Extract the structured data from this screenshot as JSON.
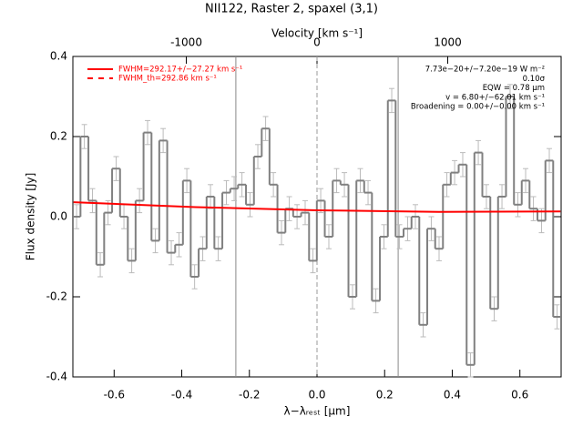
{
  "chart_data": {
    "type": "step",
    "title": "NII122, Raster 2, spaxel (3,1)",
    "x_label": "λ−λᵣₑₛₜ [μm]",
    "y_label": "Flux density [Jy]",
    "x2_label": "Velocity [km s⁻¹]",
    "xlim": [
      -0.722,
      0.722
    ],
    "xticks": [
      -0.6,
      -0.4,
      -0.2,
      {
        "value": 0,
        "label": "0.0"
      },
      0.2,
      0.4,
      0.6
    ],
    "ylim": [
      -0.4,
      0.4
    ],
    "yticks": [
      -0.4,
      -0.2,
      {
        "value": 0,
        "label": "0.0"
      },
      0.2,
      0.4
    ],
    "x2lim": [
      -1868,
      1868
    ],
    "x2ticks": [
      -1000,
      0,
      1000
    ],
    "vlines": [
      -0.24,
      0.24
    ],
    "center_line": 0,
    "annotations": [
      "7.73e−20+/−7.20e−19 W m⁻²",
      "0.10σ",
      "EQW = 0.78 μm",
      "v = 6.80+/−62.01 km s⁻¹",
      "Broadening = 0.00+/−0.00 km s⁻¹"
    ],
    "series": [
      {
        "name": "FWHM=292.17+/−27.27 km s⁻¹",
        "color": "#ff0000",
        "x": [
          -0.72,
          -0.36,
          0,
          0.36,
          0.72
        ],
        "values": [
          0.036,
          0.024,
          0.016,
          0.012,
          0.013
        ]
      },
      {
        "name": "FWHM_th=292.86 km s⁻¹",
        "color": "#ff0000",
        "dashed": true
      },
      {
        "color": "#808080",
        "error": 0.03,
        "x": [
          -0.711,
          -0.688,
          -0.664,
          -0.641,
          -0.618,
          -0.594,
          -0.571,
          -0.548,
          -0.525,
          -0.501,
          -0.478,
          -0.455,
          -0.431,
          -0.408,
          -0.385,
          -0.362,
          -0.338,
          -0.315,
          -0.292,
          -0.268,
          -0.245,
          -0.222,
          -0.198,
          -0.175,
          -0.152,
          -0.129,
          -0.105,
          -0.082,
          -0.059,
          -0.035,
          -0.012,
          0.011,
          0.035,
          0.058,
          0.081,
          0.105,
          0.128,
          0.151,
          0.174,
          0.198,
          0.221,
          0.244,
          0.268,
          0.291,
          0.314,
          0.338,
          0.361,
          0.384,
          0.407,
          0.431,
          0.454,
          0.477,
          0.501,
          0.524,
          0.547,
          0.571,
          0.594,
          0.617,
          0.64,
          0.664,
          0.687,
          0.71
        ],
        "values": [
          0.0,
          0.2,
          0.04,
          -0.12,
          0.01,
          0.12,
          0.0,
          -0.11,
          0.04,
          0.21,
          -0.06,
          0.19,
          -0.09,
          -0.07,
          0.09,
          -0.15,
          -0.08,
          0.05,
          -0.08,
          0.06,
          0.07,
          0.08,
          0.03,
          0.15,
          0.22,
          0.08,
          -0.04,
          0.02,
          0.0,
          0.01,
          -0.11,
          0.04,
          -0.05,
          0.09,
          0.08,
          -0.2,
          0.09,
          0.06,
          -0.21,
          -0.05,
          0.29,
          -0.05,
          -0.03,
          0.0,
          -0.27,
          -0.03,
          -0.08,
          0.08,
          0.11,
          0.13,
          -0.37,
          0.16,
          0.05,
          -0.23,
          0.05,
          0.3,
          0.03,
          0.09,
          0.02,
          -0.01,
          0.14,
          -0.25
        ]
      }
    ]
  }
}
